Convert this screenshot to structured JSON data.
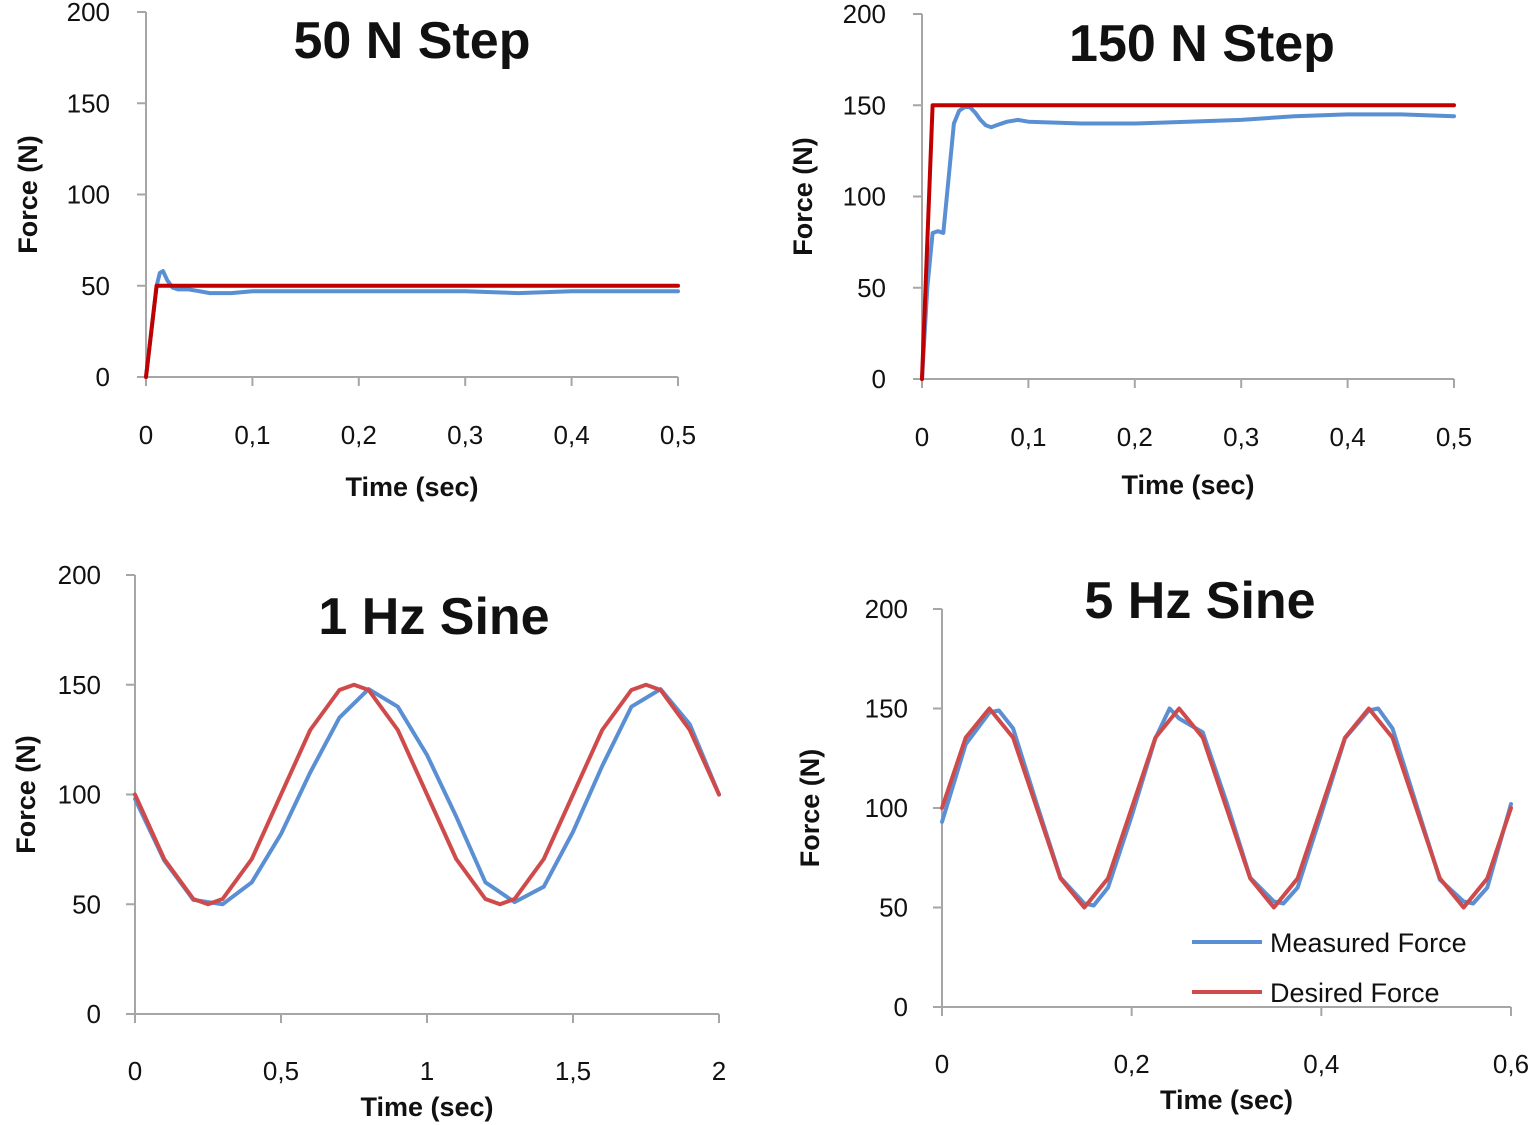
{
  "colors": {
    "measured": "#5b8fd4",
    "desired_step": "#c00000",
    "desired_sine": "#cf4b4b",
    "axis": "#a6a6a6"
  },
  "chart_data": [
    {
      "type": "line",
      "title": "50 N Step",
      "xlabel": "Time (sec)",
      "ylabel": "Force (N)",
      "xlim": [
        0,
        0.5
      ],
      "ylim": [
        0,
        200
      ],
      "x_ticks": [
        0,
        0.1,
        0.2,
        0.3,
        0.4,
        0.5
      ],
      "x_tick_labels": [
        "0",
        "0,1",
        "0,2",
        "0,3",
        "0,4",
        "0,5"
      ],
      "y_ticks": [
        0,
        50,
        100,
        150,
        200
      ],
      "y_tick_labels": [
        "0",
        "50",
        "100",
        "150",
        "200"
      ],
      "legend": false,
      "series": [
        {
          "name": "Measured Force",
          "color_key": "measured",
          "x": [
            0,
            0.005,
            0.01,
            0.013,
            0.016,
            0.02,
            0.025,
            0.03,
            0.04,
            0.05,
            0.06,
            0.08,
            0.1,
            0.15,
            0.2,
            0.25,
            0.3,
            0.35,
            0.4,
            0.45,
            0.5
          ],
          "y": [
            0,
            25,
            50,
            57,
            58,
            53,
            49,
            48,
            48,
            47,
            46,
            46,
            47,
            47,
            47,
            47,
            47,
            46,
            47,
            47,
            47
          ]
        },
        {
          "name": "Desired Force",
          "color_key": "desired_step",
          "x": [
            0,
            0.01,
            0.5
          ],
          "y": [
            0,
            50,
            50
          ]
        }
      ]
    },
    {
      "type": "line",
      "title": "150 N Step",
      "xlabel": "Time (sec)",
      "ylabel": "Force (N)",
      "xlim": [
        0,
        0.5
      ],
      "ylim": [
        0,
        200
      ],
      "x_ticks": [
        0,
        0.1,
        0.2,
        0.3,
        0.4,
        0.5
      ],
      "x_tick_labels": [
        "0",
        "0,1",
        "0,2",
        "0,3",
        "0,4",
        "0,5"
      ],
      "y_ticks": [
        0,
        50,
        100,
        150,
        200
      ],
      "y_tick_labels": [
        "0",
        "50",
        "100",
        "150",
        "200"
      ],
      "legend": false,
      "series": [
        {
          "name": "Measured Force",
          "color_key": "measured",
          "x": [
            0,
            0.005,
            0.01,
            0.015,
            0.02,
            0.025,
            0.03,
            0.035,
            0.04,
            0.045,
            0.05,
            0.055,
            0.06,
            0.065,
            0.07,
            0.08,
            0.09,
            0.1,
            0.15,
            0.2,
            0.25,
            0.3,
            0.35,
            0.4,
            0.45,
            0.5
          ],
          "y": [
            0,
            50,
            80,
            81,
            80,
            110,
            140,
            147,
            149,
            149,
            146,
            142,
            139,
            138,
            139,
            141,
            142,
            141,
            140,
            140,
            141,
            142,
            144,
            145,
            145,
            144
          ]
        },
        {
          "name": "Desired Force",
          "color_key": "desired_step",
          "x": [
            0,
            0.01,
            0.5
          ],
          "y": [
            0,
            150,
            150
          ]
        }
      ]
    },
    {
      "type": "line",
      "title": "1 Hz Sine",
      "xlabel": "Time (sec)",
      "ylabel": "Force (N)",
      "xlim": [
        0,
        2
      ],
      "ylim": [
        0,
        200
      ],
      "x_ticks": [
        0,
        0.5,
        1,
        1.5,
        2
      ],
      "x_tick_labels": [
        "0",
        "0,5",
        "1",
        "1,5",
        "2"
      ],
      "y_ticks": [
        0,
        50,
        100,
        150,
        200
      ],
      "y_tick_labels": [
        "0",
        "50",
        "100",
        "150",
        "200"
      ],
      "legend": false,
      "series": [
        {
          "name": "Measured Force",
          "color_key": "measured",
          "x": [
            0,
            0.1,
            0.2,
            0.3,
            0.4,
            0.5,
            0.6,
            0.7,
            0.8,
            0.9,
            1.0,
            1.1,
            1.2,
            1.3,
            1.4,
            1.5,
            1.6,
            1.7,
            1.8,
            1.9,
            2.0
          ],
          "y": [
            98,
            70,
            52,
            50,
            60,
            82,
            110,
            135,
            148,
            140,
            118,
            90,
            60,
            51,
            58,
            83,
            113,
            140,
            148,
            132,
            100
          ]
        },
        {
          "name": "Desired Force",
          "color_key": "desired_sine",
          "x": [
            0,
            0.1,
            0.2,
            0.25,
            0.3,
            0.4,
            0.5,
            0.6,
            0.7,
            0.75,
            0.8,
            0.9,
            1.0,
            1.1,
            1.2,
            1.25,
            1.3,
            1.4,
            1.5,
            1.6,
            1.7,
            1.75,
            1.8,
            1.9,
            2.0
          ],
          "y": [
            100,
            70.6,
            52.4,
            50,
            52.4,
            70.6,
            100,
            129.4,
            147.6,
            150,
            147.6,
            129.4,
            100,
            70.6,
            52.4,
            50,
            52.4,
            70.6,
            100,
            129.4,
            147.6,
            150,
            147.6,
            129.4,
            100
          ]
        }
      ]
    },
    {
      "type": "line",
      "title": "5 Hz Sine",
      "xlabel": "Time (sec)",
      "ylabel": "Force (N)",
      "xlim": [
        0,
        0.6
      ],
      "ylim": [
        0,
        200
      ],
      "x_ticks": [
        0,
        0.2,
        0.4,
        0.6
      ],
      "x_tick_labels": [
        "0",
        "0,2",
        "0,4",
        "0,6"
      ],
      "y_ticks": [
        0,
        50,
        100,
        150,
        200
      ],
      "y_tick_labels": [
        "0",
        "50",
        "100",
        "150",
        "200"
      ],
      "legend": true,
      "legend_position": "bottom-right",
      "series": [
        {
          "name": "Measured Force",
          "color_key": "measured",
          "x": [
            0,
            0.025,
            0.05,
            0.06,
            0.075,
            0.1,
            0.125,
            0.15,
            0.16,
            0.175,
            0.2,
            0.225,
            0.24,
            0.25,
            0.275,
            0.3,
            0.325,
            0.35,
            0.36,
            0.375,
            0.4,
            0.425,
            0.45,
            0.46,
            0.475,
            0.5,
            0.525,
            0.55,
            0.56,
            0.575,
            0.6
          ],
          "y": [
            93,
            132,
            148,
            149,
            140,
            102,
            65,
            52,
            51,
            60,
            96,
            135,
            150,
            145,
            138,
            103,
            65,
            53,
            52,
            60,
            97,
            135,
            149,
            150,
            140,
            102,
            64,
            53,
            52,
            60,
            102
          ]
        },
        {
          "name": "Desired Force",
          "color_key": "desired_sine",
          "x": [
            0,
            0.025,
            0.05,
            0.075,
            0.1,
            0.125,
            0.15,
            0.175,
            0.2,
            0.225,
            0.25,
            0.275,
            0.3,
            0.325,
            0.35,
            0.375,
            0.4,
            0.425,
            0.45,
            0.475,
            0.5,
            0.525,
            0.55,
            0.575,
            0.6
          ],
          "y": [
            100,
            135.4,
            150,
            135.4,
            100,
            64.6,
            50,
            64.6,
            100,
            135.4,
            150,
            135.4,
            100,
            64.6,
            50,
            64.6,
            100,
            135.4,
            150,
            135.4,
            100,
            64.6,
            50,
            64.6,
            100
          ]
        }
      ]
    }
  ]
}
